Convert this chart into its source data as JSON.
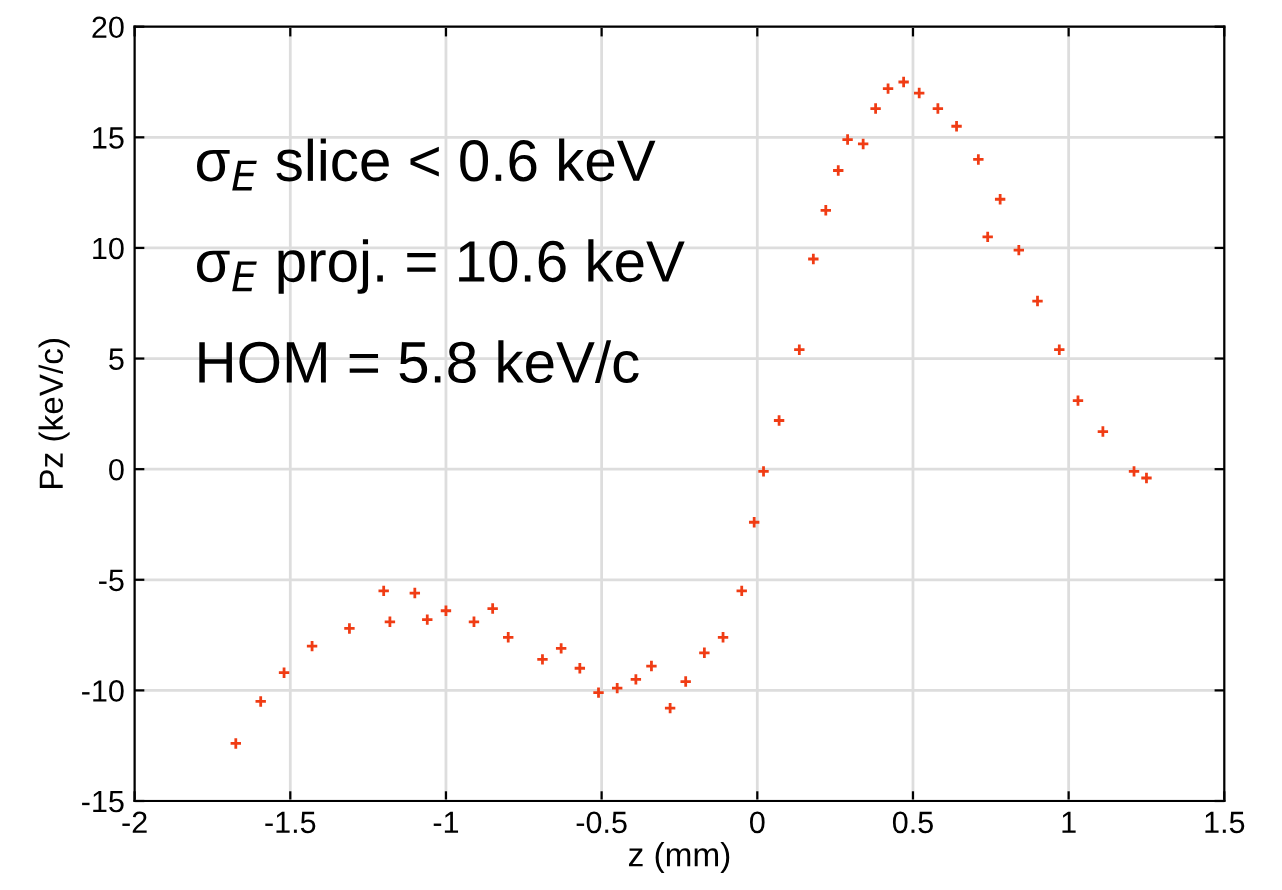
{
  "chart_data": {
    "type": "scatter",
    "xlabel": "z (mm)",
    "ylabel": "Pz (keV/c)",
    "annotations": [
      "σ$_{E}$ slice < 0.6 keV",
      "σ$_{E}$ proj. = 10.6 keV",
      "HOM = 5.8 keV/c"
    ],
    "xlim": [
      -2,
      1.5
    ],
    "xticks": [
      -2,
      -1.5,
      -1,
      -0.5,
      0,
      0.5,
      1,
      1.5
    ],
    "ylim": [
      -15,
      20
    ],
    "yticks": [
      -15,
      -10,
      -5,
      0,
      5,
      10,
      15,
      20
    ],
    "grid": true,
    "marker": "cross",
    "series": [
      {
        "color": "#f03c14",
        "x": [
          -1.675,
          -1.595,
          -1.52,
          -1.43,
          -1.31,
          -1.2,
          -1.18,
          -1.1,
          -1.06,
          -1.0,
          -0.91,
          -0.85,
          -0.8,
          -0.69,
          -0.63,
          -0.57,
          -0.51,
          -0.45,
          -0.39,
          -0.34,
          -0.28,
          -0.23,
          -0.17,
          -0.11,
          -0.05,
          -0.01,
          0.02,
          0.07,
          0.135,
          0.18,
          0.22,
          0.26,
          0.29,
          0.34,
          0.38,
          0.42,
          0.47,
          0.52,
          0.58,
          0.64,
          0.71,
          0.74,
          0.78,
          0.84,
          0.9,
          0.97,
          1.03,
          1.11,
          1.21,
          1.25
        ],
        "values": [
          -12.4,
          -10.5,
          -9.2,
          -8.0,
          -7.2,
          -5.5,
          -6.9,
          -5.6,
          -6.8,
          -6.4,
          -6.9,
          -6.3,
          -7.6,
          -8.6,
          -8.1,
          -9.0,
          -10.1,
          -9.9,
          -9.5,
          -8.9,
          -10.8,
          -9.6,
          -8.3,
          -7.6,
          -5.5,
          -2.4,
          -0.1,
          2.2,
          5.4,
          9.5,
          11.7,
          13.5,
          14.9,
          14.7,
          16.3,
          17.2,
          17.5,
          17.0,
          16.3,
          15.5,
          14.0,
          10.5,
          12.2,
          9.9,
          7.6,
          5.4,
          3.1,
          1.7,
          -0.1,
          -0.4
        ]
      }
    ]
  }
}
